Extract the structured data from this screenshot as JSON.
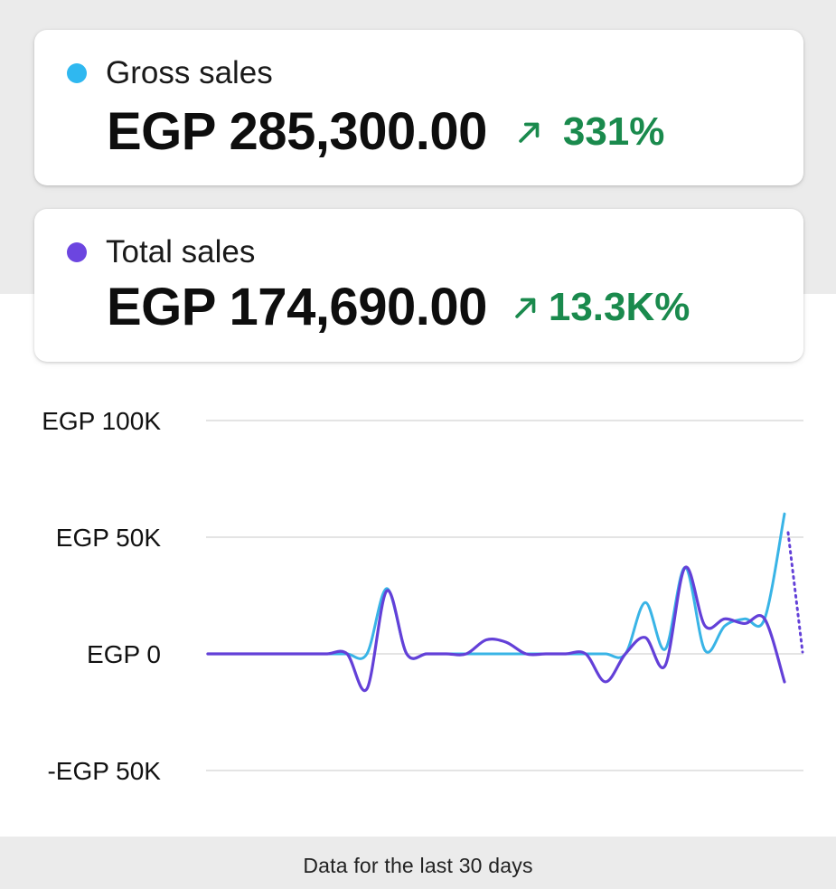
{
  "cards": [
    {
      "label": "Gross sales",
      "value": "EGP 285,300.00",
      "delta": "331%",
      "delta_direction": "up",
      "dot_color": "#2fb8f0"
    },
    {
      "label": "Total sales",
      "value": "EGP 174,690.00",
      "delta": "13.3K%",
      "delta_direction": "up",
      "dot_color": "#6c45e0"
    }
  ],
  "footer": {
    "text": "Data for the last 30 days"
  },
  "chart_data": {
    "type": "line",
    "title": "",
    "xlabel": "",
    "ylabel": "",
    "ylim": [
      -50000,
      100000
    ],
    "ytick_values": [
      100000,
      50000,
      0,
      -50000
    ],
    "ytick_labels": [
      "EGP 100K",
      "EGP 50K",
      "EGP 0",
      "-EGP 50K"
    ],
    "grid": true,
    "x": [
      1,
      2,
      3,
      4,
      5,
      6,
      7,
      8,
      9,
      10,
      11,
      12,
      13,
      14,
      15,
      16,
      17,
      18,
      19,
      20,
      21,
      22,
      23,
      24,
      25,
      26,
      27,
      28,
      29,
      30
    ],
    "series": [
      {
        "color": "#39b4e6",
        "values": [
          0,
          0,
          0,
          0,
          0,
          0,
          0,
          0,
          0,
          28000,
          0,
          0,
          0,
          0,
          0,
          0,
          0,
          0,
          0,
          0,
          0,
          0,
          22000,
          2000,
          37000,
          1500,
          12000,
          15000,
          15000,
          60000
        ]
      },
      {
        "color": "#6340d8",
        "values": [
          0,
          0,
          0,
          0,
          0,
          0,
          0,
          0,
          -15000,
          27000,
          0,
          0,
          0,
          0,
          6000,
          5000,
          0,
          0,
          0,
          0,
          -12000,
          0,
          7000,
          -5000,
          37000,
          12000,
          15000,
          13000,
          15000,
          -12000
        ]
      }
    ],
    "tail_dotted_value": 52000
  }
}
